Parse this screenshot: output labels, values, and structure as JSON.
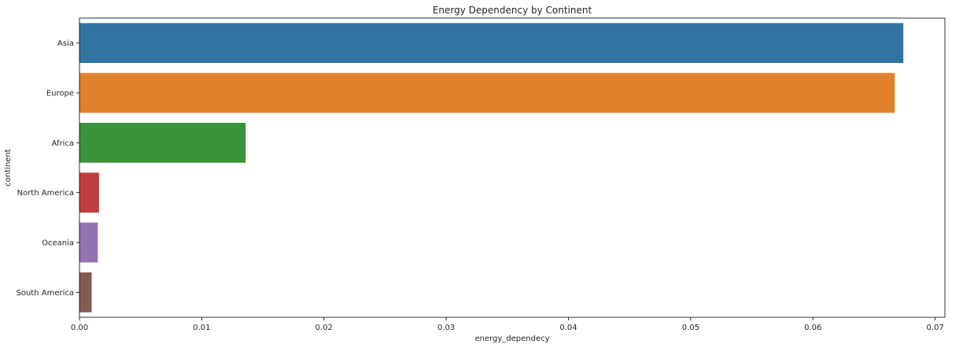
{
  "chart_data": {
    "type": "bar",
    "orientation": "horizontal",
    "title": "Energy Dependency by Continent",
    "xlabel": "energy_dependecy",
    "ylabel": "continent",
    "categories": [
      "Asia",
      "Europe",
      "Africa",
      "North America",
      "Oceania",
      "South America"
    ],
    "values": [
      0.0674,
      0.0667,
      0.0136,
      0.0016,
      0.0015,
      0.001
    ],
    "colors": [
      "#3274a1",
      "#e1812c",
      "#3a923a",
      "#c03d3e",
      "#9372b2",
      "#845b53"
    ],
    "xlim": [
      0,
      0.0708
    ],
    "xticks": [
      0.0,
      0.01,
      0.02,
      0.03,
      0.04,
      0.05,
      0.06,
      0.07
    ],
    "xtick_labels": [
      "0.00",
      "0.01",
      "0.02",
      "0.03",
      "0.04",
      "0.05",
      "0.06",
      "0.07"
    ],
    "grid": false,
    "legend": "none"
  }
}
